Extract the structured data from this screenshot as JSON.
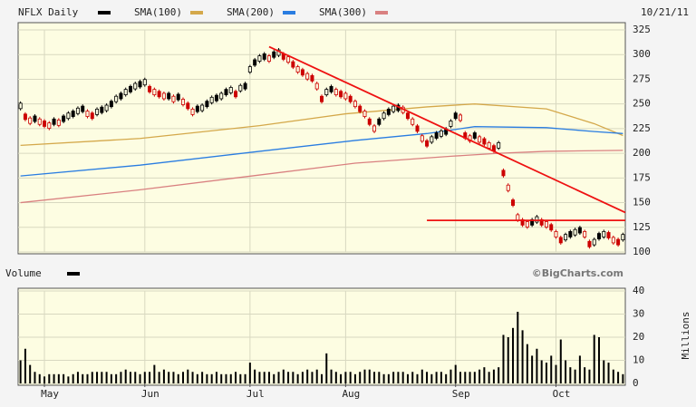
{
  "chart_data": [
    {
      "type": "price",
      "title": "NFLX Daily",
      "date": "10/21/11",
      "xlim": [
        -0.5,
        126.5
      ],
      "xticks": [
        {
          "value": 5,
          "label": "May"
        },
        {
          "value": 26,
          "label": "Jun"
        },
        {
          "value": 48,
          "label": "Jul"
        },
        {
          "value": 68,
          "label": "Aug"
        },
        {
          "value": 91,
          "label": "Sep"
        },
        {
          "value": 112,
          "label": "Oct"
        }
      ],
      "ylim": [
        100,
        325
      ],
      "yticks": [
        100,
        125,
        150,
        175,
        200,
        225,
        250,
        275,
        300,
        325
      ],
      "grid": true,
      "series": [
        {
          "name": "NFLX Daily",
          "color": "#000000",
          "down_color": "#cc0000",
          "values": [
            248,
            237,
            233,
            235,
            232,
            230,
            228,
            232,
            231,
            235,
            238,
            240,
            243,
            245,
            240,
            238,
            242,
            244,
            246,
            250,
            255,
            258,
            262,
            265,
            268,
            270,
            272,
            265,
            262,
            260,
            258,
            258,
            255,
            257,
            252,
            248,
            242,
            245,
            246,
            250,
            254,
            256,
            258,
            262,
            264,
            260,
            266,
            268,
            285,
            292,
            296,
            298,
            296,
            300,
            302,
            298,
            295,
            290,
            285,
            282,
            278,
            276,
            268,
            255,
            262,
            265,
            262,
            260,
            258,
            255,
            250,
            245,
            240,
            232,
            225,
            232,
            238,
            242,
            245,
            246,
            244,
            238,
            232,
            225,
            215,
            210,
            214,
            218,
            220,
            222,
            230,
            238,
            236,
            218,
            215,
            218,
            214,
            212,
            208,
            205,
            208,
            180,
            165,
            150,
            135,
            130,
            128,
            130,
            133,
            130,
            128,
            125,
            118,
            112,
            115,
            118,
            120,
            122,
            118,
            108,
            110,
            116,
            118,
            117,
            112,
            110,
            115
          ]
        },
        {
          "name": "SMA(100)",
          "color": "#d4a84a",
          "x": [
            0,
            25,
            50,
            68,
            85,
            95,
            110,
            120,
            126
          ],
          "values": [
            208,
            215,
            228,
            240,
            247,
            250,
            245,
            230,
            218
          ]
        },
        {
          "name": "SMA(200)",
          "color": "#2a7de1",
          "x": [
            0,
            25,
            50,
            70,
            85,
            95,
            110,
            120,
            126
          ],
          "values": [
            177,
            188,
            202,
            213,
            220,
            227,
            226,
            222,
            220
          ]
        },
        {
          "name": "SMA(300)",
          "color": "#d98080",
          "x": [
            0,
            25,
            50,
            70,
            90,
            100,
            110,
            126
          ],
          "values": [
            150,
            163,
            178,
            190,
            197,
            200,
            202,
            203
          ]
        }
      ],
      "trendlines": [
        {
          "color": "#ee1111",
          "x": [
            52,
            126.5
          ],
          "y": [
            308,
            140
          ]
        },
        {
          "color": "#ee1111",
          "x": [
            85,
            126.5
          ],
          "y": [
            132,
            132
          ]
        }
      ]
    },
    {
      "type": "bar",
      "title": "Volume",
      "source": "©BigCharts.com",
      "y_label": "Millions",
      "color": "#000000",
      "xlim": [
        -0.5,
        126.5
      ],
      "ylim": [
        0,
        40
      ],
      "yticks": [
        0,
        10,
        20,
        30,
        40
      ],
      "grid": true,
      "values": [
        10,
        15,
        8,
        5,
        4,
        3,
        4,
        4,
        4,
        4,
        3,
        4,
        5,
        4,
        4,
        5,
        5,
        5,
        5,
        4,
        4,
        5,
        6,
        5,
        5,
        4,
        5,
        5,
        8,
        5,
        6,
        5,
        5,
        4,
        5,
        6,
        5,
        4,
        5,
        4,
        4,
        5,
        4,
        4,
        4,
        5,
        4,
        4,
        9,
        6,
        5,
        5,
        5,
        4,
        5,
        6,
        5,
        5,
        4,
        5,
        6,
        5,
        6,
        4,
        13,
        6,
        5,
        4,
        5,
        5,
        4,
        5,
        6,
        6,
        5,
        5,
        4,
        4,
        5,
        5,
        5,
        4,
        5,
        4,
        6,
        5,
        4,
        5,
        5,
        4,
        6,
        8,
        5,
        5,
        5,
        5,
        6,
        7,
        5,
        6,
        7,
        21,
        20,
        24,
        31,
        23,
        17,
        12,
        15,
        10,
        9,
        12,
        8,
        19,
        10,
        7,
        6,
        12,
        7,
        6,
        21,
        20,
        10,
        9,
        6,
        5,
        4
      ]
    }
  ]
}
